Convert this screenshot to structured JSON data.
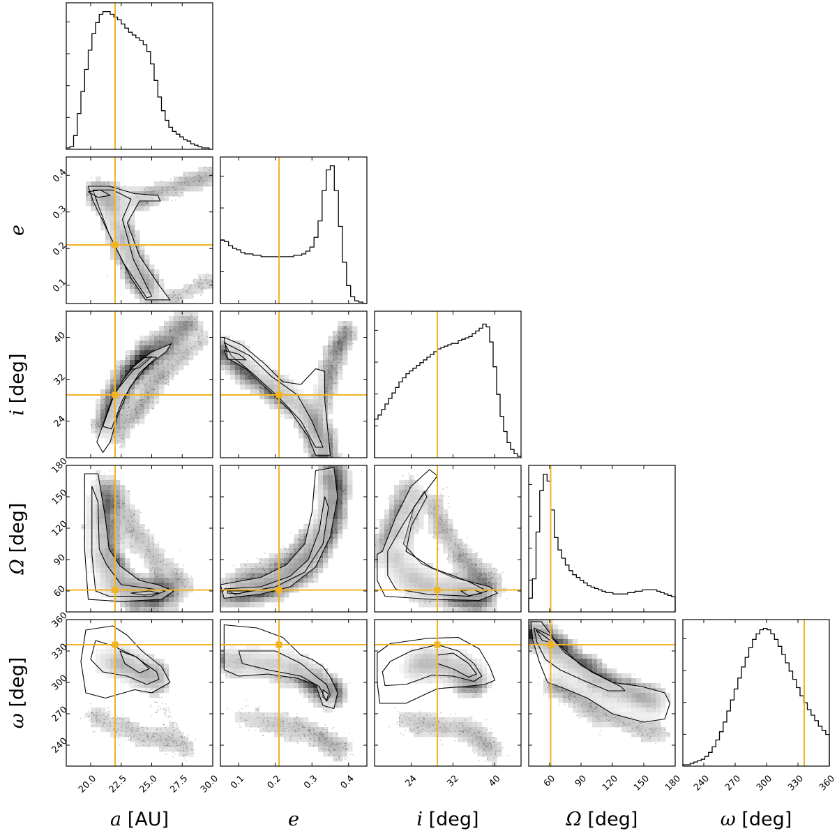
{
  "chart_data": {
    "type": "corner",
    "truth_color": "#f0b323",
    "parameters": [
      {
        "symbol": "a",
        "unit": "[AU]",
        "range": [
          18.0,
          30.0
        ],
        "ticks": [
          "20.0",
          "22.5",
          "25.0",
          "27.5",
          "30.0"
        ],
        "tick_values": [
          20.0,
          22.5,
          25.0,
          27.5,
          30.0
        ],
        "truth": 22.0
      },
      {
        "symbol": "e",
        "unit": "",
        "range": [
          0.05,
          0.45
        ],
        "ticks": [
          "0.1",
          "0.2",
          "0.3",
          "0.4"
        ],
        "tick_values": [
          0.1,
          0.2,
          0.3,
          0.4
        ],
        "truth": 0.21
      },
      {
        "symbol": "i",
        "unit": "[deg]",
        "range": [
          17,
          45
        ],
        "ticks": [
          "24",
          "32",
          "40"
        ],
        "tick_values": [
          24,
          32,
          40
        ],
        "truth": 29.0
      },
      {
        "symbol": "Ω",
        "unit": "[deg]",
        "range": [
          40,
          180
        ],
        "ticks": [
          "60",
          "90",
          "120",
          "150",
          "180"
        ],
        "tick_values": [
          60,
          90,
          120,
          150,
          180
        ],
        "truth": 61
      },
      {
        "symbol": "ω",
        "unit": "[deg]",
        "range": [
          220,
          360
        ],
        "ticks": [
          "240",
          "270",
          "300",
          "330",
          "360"
        ],
        "tick_values": [
          240,
          270,
          300,
          330,
          360
        ],
        "truth": 336
      }
    ],
    "histograms": [
      [
        0.01,
        0.02,
        0.1,
        0.26,
        0.42,
        0.58,
        0.72,
        0.84,
        0.92,
        0.98,
        1.0,
        1.0,
        0.98,
        0.96,
        0.94,
        0.91,
        0.88,
        0.85,
        0.83,
        0.81,
        0.79,
        0.76,
        0.71,
        0.62,
        0.5,
        0.38,
        0.28,
        0.21,
        0.16,
        0.13,
        0.11,
        0.09,
        0.07,
        0.06,
        0.04,
        0.03,
        0.02,
        0.01,
        0.01,
        0.0
      ],
      [
        0.46,
        0.45,
        0.42,
        0.4,
        0.39,
        0.37,
        0.36,
        0.36,
        0.35,
        0.35,
        0.34,
        0.34,
        0.34,
        0.34,
        0.34,
        0.34,
        0.34,
        0.34,
        0.35,
        0.35,
        0.36,
        0.38,
        0.41,
        0.48,
        0.6,
        0.82,
        0.97,
        1.0,
        0.82,
        0.56,
        0.3,
        0.13,
        0.05,
        0.02,
        0.01,
        0.0
      ],
      [
        0.28,
        0.31,
        0.35,
        0.39,
        0.43,
        0.47,
        0.51,
        0.55,
        0.58,
        0.61,
        0.63,
        0.65,
        0.67,
        0.69,
        0.71,
        0.73,
        0.75,
        0.77,
        0.79,
        0.8,
        0.81,
        0.82,
        0.83,
        0.83,
        0.85,
        0.86,
        0.87,
        0.88,
        0.9,
        0.92,
        0.94,
        0.97,
        0.95,
        0.84,
        0.66,
        0.46,
        0.3,
        0.19,
        0.11,
        0.06,
        0.03,
        0.01
      ],
      [
        0.1,
        0.24,
        0.58,
        0.88,
        1.0,
        0.95,
        0.74,
        0.54,
        0.45,
        0.39,
        0.34,
        0.3,
        0.27,
        0.25,
        0.23,
        0.21,
        0.19,
        0.18,
        0.17,
        0.16,
        0.15,
        0.14,
        0.14,
        0.13,
        0.13,
        0.13,
        0.13,
        0.14,
        0.14,
        0.15,
        0.15,
        0.16,
        0.16,
        0.16,
        0.16,
        0.15,
        0.14,
        0.13,
        0.12,
        0.11
      ],
      [
        0.01,
        0.01,
        0.02,
        0.03,
        0.04,
        0.05,
        0.07,
        0.1,
        0.14,
        0.19,
        0.25,
        0.32,
        0.4,
        0.48,
        0.56,
        0.64,
        0.72,
        0.79,
        0.86,
        0.92,
        0.96,
        0.99,
        1.0,
        0.99,
        0.96,
        0.92,
        0.87,
        0.81,
        0.75,
        0.69,
        0.63,
        0.57,
        0.51,
        0.46,
        0.41,
        0.37,
        0.33,
        0.29,
        0.26,
        0.23
      ]
    ]
  }
}
